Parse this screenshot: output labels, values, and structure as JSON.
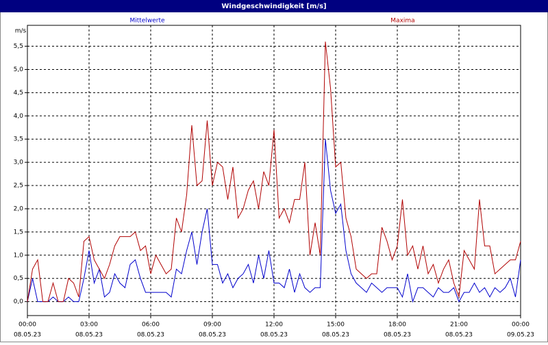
{
  "chart_data": {
    "type": "line",
    "title": "Windgeschwindigkeit [m/s]",
    "ylabel": "m/s",
    "x": [
      0,
      0.25,
      0.5,
      0.75,
      1,
      1.25,
      1.5,
      1.75,
      2,
      2.25,
      2.5,
      2.75,
      3,
      3.25,
      3.5,
      3.75,
      4,
      4.25,
      4.5,
      4.75,
      5,
      5.25,
      5.5,
      5.75,
      6,
      6.25,
      6.5,
      6.75,
      7,
      7.25,
      7.5,
      7.75,
      8,
      8.25,
      8.5,
      8.75,
      9,
      9.25,
      9.5,
      9.75,
      10,
      10.25,
      10.5,
      10.75,
      11,
      11.25,
      11.5,
      11.75,
      12,
      12.25,
      12.5,
      12.75,
      13,
      13.25,
      13.5,
      13.75,
      14,
      14.25,
      14.5,
      14.75,
      15,
      15.25,
      15.5,
      15.75,
      16,
      16.25,
      16.5,
      16.75,
      17,
      17.25,
      17.5,
      17.75,
      18,
      18.25,
      18.5,
      18.75,
      19,
      19.25,
      19.5,
      19.75,
      20,
      20.25,
      20.5,
      20.75,
      21,
      21.25,
      21.5,
      21.75,
      22,
      22.25,
      22.5,
      22.75,
      23,
      23.25,
      23.5,
      23.75,
      24
    ],
    "series": [
      {
        "name": "Mittelwerte",
        "color": "#0000cc",
        "values": [
          0,
          0.5,
          0,
          0,
          0,
          0.1,
          0,
          0,
          0.1,
          0,
          0,
          0.5,
          1.1,
          0.4,
          0.7,
          0.1,
          0.2,
          0.6,
          0.4,
          0.3,
          0.8,
          0.9,
          0.5,
          0.2,
          0.2,
          0.2,
          0.2,
          0.2,
          0.1,
          0.7,
          0.6,
          1.1,
          1.5,
          0.8,
          1.5,
          2.0,
          0.8,
          0.8,
          0.4,
          0.6,
          0.3,
          0.5,
          0.6,
          0.8,
          0.4,
          1.0,
          0.5,
          1.1,
          0.4,
          0.4,
          0.3,
          0.7,
          0.2,
          0.6,
          0.3,
          0.2,
          0.3,
          0.3,
          3.5,
          2.4,
          1.9,
          2.1,
          1.1,
          0.6,
          0.4,
          0.3,
          0.2,
          0.4,
          0.3,
          0.2,
          0.3,
          0.3,
          0.3,
          0.1,
          0.6,
          0.0,
          0.3,
          0.3,
          0.2,
          0.1,
          0.3,
          0.2,
          0.2,
          0.3,
          0.0,
          0.2,
          0.2,
          0.4,
          0.2,
          0.3,
          0.1,
          0.3,
          0.2,
          0.3,
          0.5,
          0.1,
          0.9
        ]
      },
      {
        "name": "Maxima",
        "color": "#b00000",
        "values": [
          0,
          0.7,
          0.9,
          0,
          0,
          0.4,
          0,
          0,
          0.5,
          0.4,
          0.1,
          1.3,
          1.4,
          0.9,
          0.7,
          0.5,
          0.8,
          1.2,
          1.4,
          1.4,
          1.4,
          1.5,
          1.1,
          1.2,
          0.6,
          1.0,
          0.8,
          0.6,
          0.7,
          1.8,
          1.5,
          2.3,
          3.8,
          2.5,
          2.6,
          3.9,
          2.5,
          3.0,
          2.9,
          2.2,
          2.9,
          1.8,
          2.0,
          2.4,
          2.6,
          2.0,
          2.8,
          2.5,
          3.7,
          1.8,
          2.0,
          1.7,
          2.2,
          2.2,
          3.0,
          1.0,
          1.7,
          1.0,
          5.6,
          4.6,
          2.9,
          3.0,
          1.8,
          1.4,
          0.7,
          0.6,
          0.5,
          0.6,
          0.6,
          1.6,
          1.3,
          0.9,
          1.2,
          2.2,
          1.0,
          1.2,
          0.7,
          1.2,
          0.6,
          0.8,
          0.4,
          0.7,
          0.9,
          0.4,
          0.1,
          1.1,
          0.9,
          0.7,
          2.2,
          1.2,
          1.2,
          0.6,
          0.7,
          0.8,
          0.9,
          0.9,
          1.3
        ]
      }
    ],
    "xlim": [
      0,
      24
    ],
    "xticks": [
      {
        "value": 0,
        "label": "00:00"
      },
      {
        "value": 3,
        "label": "03:00"
      },
      {
        "value": 6,
        "label": "06:00"
      },
      {
        "value": 9,
        "label": "09:00"
      },
      {
        "value": 12,
        "label": "12:00"
      },
      {
        "value": 15,
        "label": "15:00"
      },
      {
        "value": 18,
        "label": "18:00"
      },
      {
        "value": 21,
        "label": "21:00"
      },
      {
        "value": 24,
        "label": "00:00"
      }
    ],
    "xtick_dates": [
      "08.05.23",
      "08.05.23",
      "08.05.23",
      "08.05.23",
      "08.05.23",
      "08.05.23",
      "08.05.23",
      "08.05.23",
      "09.05.23"
    ],
    "ylim": [
      -0.3,
      5.95
    ],
    "yticks": [
      {
        "value": 0,
        "label": "0,0"
      },
      {
        "value": 0.5,
        "label": "0,5"
      },
      {
        "value": 1,
        "label": "1,0"
      },
      {
        "value": 1.5,
        "label": "1,5"
      },
      {
        "value": 2,
        "label": "2,0"
      },
      {
        "value": 2.5,
        "label": "2,5"
      },
      {
        "value": 3,
        "label": "3,0"
      },
      {
        "value": 3.5,
        "label": "3,5"
      },
      {
        "value": 4,
        "label": "4,0"
      },
      {
        "value": 4.5,
        "label": "4,5"
      },
      {
        "value": 5,
        "label": "5,0"
      },
      {
        "value": 5.5,
        "label": "5,5"
      }
    ],
    "grid": true
  }
}
